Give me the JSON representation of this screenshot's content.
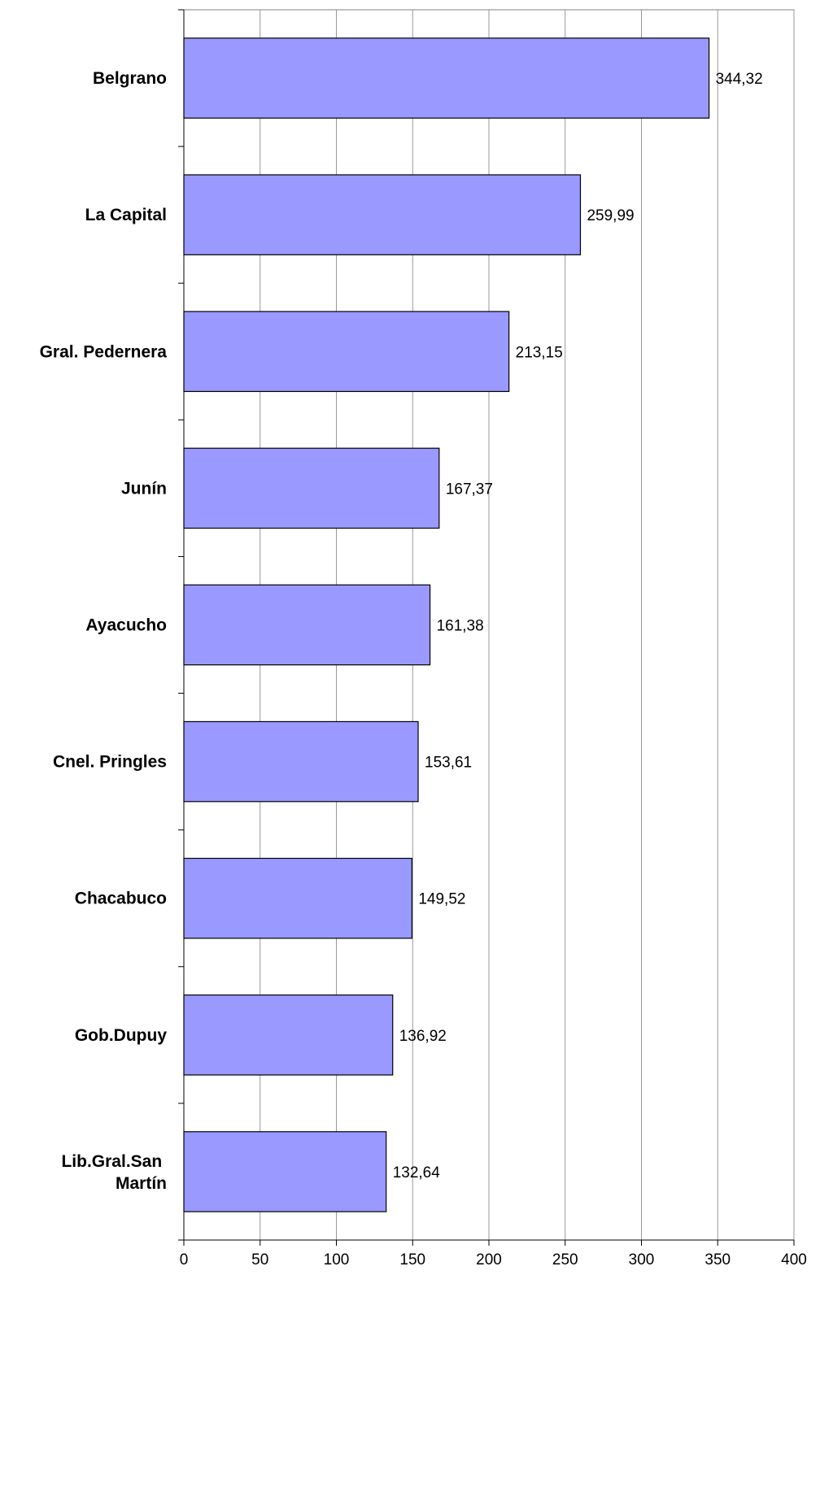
{
  "chart_data": {
    "type": "bar",
    "orientation": "horizontal",
    "categories": [
      "Belgrano",
      "La Capital",
      "Gral. Pedernera",
      "Junín",
      "Ayacucho",
      "Cnel. Pringles",
      "Chacabuco",
      "Gob.Dupuy",
      "Lib.Gral.San Martín"
    ],
    "values": [
      344.32,
      259.99,
      213.15,
      167.37,
      161.38,
      153.61,
      149.52,
      136.92,
      132.64
    ],
    "value_labels": [
      "344,32",
      "259,99",
      "213,15",
      "167,37",
      "161,38",
      "153,61",
      "149,52",
      "136,92",
      "132,64"
    ],
    "color": "#9999ff",
    "xlim": [
      0,
      400
    ],
    "xticks": [
      0,
      50,
      100,
      150,
      200,
      250,
      300,
      350,
      400
    ],
    "grid": true
  }
}
